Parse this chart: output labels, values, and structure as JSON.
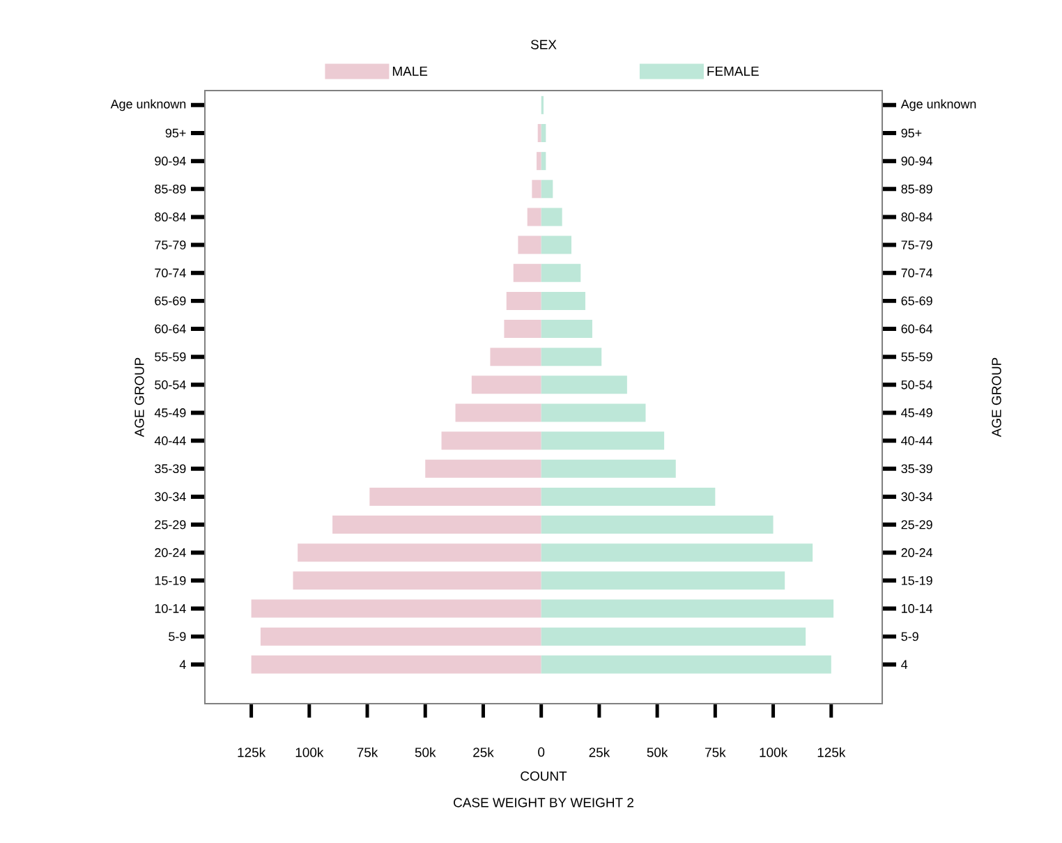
{
  "chart_data": {
    "type": "bar",
    "orientation": "horizontal",
    "stacked": true,
    "legend_title": "SEX",
    "legend": "top",
    "xlabel": "COUNT",
    "ylabel": "AGE GROUP",
    "y2label": "AGE GROUP",
    "annotations": [
      "CASE WEIGHT BY WEIGHT 2"
    ],
    "categories": [
      "Age unknown",
      "95+",
      "90-94",
      "85-89",
      "80-84",
      "75-79",
      "70-74",
      "65-69",
      "60-64",
      "55-59",
      "50-54",
      "45-49",
      "40-44",
      "35-39",
      "30-34",
      "25-29",
      "20-24",
      "15-19",
      "10-14",
      "5-9",
      "4"
    ],
    "series": [
      {
        "name": "MALE",
        "color": "#eccbd3",
        "values": [
          null,
          -1500,
          -2000,
          -4000,
          -6000,
          -10000,
          -12000,
          -15000,
          -16000,
          -22000,
          -30000,
          -37000,
          -43000,
          -50000,
          -74000,
          -90000,
          -105000,
          -107000,
          -125000,
          -121000,
          -125000
        ]
      },
      {
        "name": "FEMALE",
        "color": "#bde7d8",
        "values": [
          1000,
          2000,
          2000,
          5000,
          9000,
          13000,
          17000,
          19000,
          22000,
          26000,
          37000,
          45000,
          53000,
          58000,
          75000,
          100000,
          117000,
          105000,
          126000,
          114000,
          125000
        ]
      }
    ],
    "xlim": [
      -145000,
      147000
    ],
    "xticks": [
      {
        "value": -125000,
        "label": "125k"
      },
      {
        "value": -100000,
        "label": "100k"
      },
      {
        "value": -75000,
        "label": "75k"
      },
      {
        "value": -50000,
        "label": "50k"
      },
      {
        "value": -25000,
        "label": "25k"
      },
      0,
      {
        "value": 25000,
        "label": "25k"
      },
      {
        "value": 50000,
        "label": "50k"
      },
      {
        "value": 75000,
        "label": "75k"
      },
      {
        "value": 100000,
        "label": "100k"
      },
      {
        "value": 125000,
        "label": "125k"
      }
    ]
  }
}
